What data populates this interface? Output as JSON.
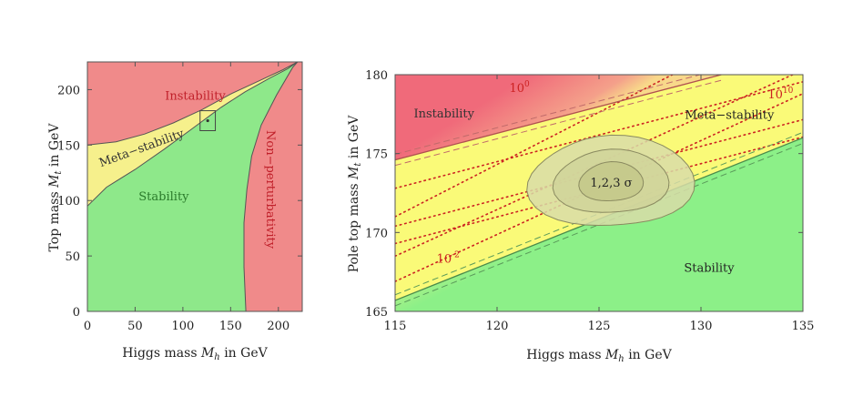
{
  "chart_data": [
    {
      "type": "area",
      "name": "higgs-top-phase-diagram-wide",
      "xlabel_parts": [
        "Higgs mass ",
        "M",
        "h",
        " in GeV"
      ],
      "ylabel_parts": [
        "Top mass ",
        "M",
        "t",
        " in GeV"
      ],
      "xlim": [
        0,
        225
      ],
      "ylim": [
        0,
        225
      ],
      "xticks": [
        "0",
        "50",
        "100",
        "150",
        "200"
      ],
      "yticks": [
        "0",
        "50",
        "100",
        "150",
        "200"
      ],
      "xtick_values": [
        0,
        50,
        100,
        150,
        200
      ],
      "ytick_values": [
        0,
        50,
        100,
        150,
        200
      ],
      "colors": {
        "instability": "#f08a8a",
        "metastability": "#f6f08c",
        "stability": "#8ee88a",
        "nonpert": "#f08a8a",
        "edge": "#555555"
      },
      "regions": [
        {
          "key": "instability",
          "label": "Instability",
          "label_at": [
            113,
            191
          ],
          "label_color": "#c0202a"
        },
        {
          "key": "metastability",
          "label": "Meta−stability",
          "label_at": [
            58,
            144
          ],
          "rotate_deg": -20,
          "label_color": "#333333"
        },
        {
          "key": "stability",
          "label": "Stability",
          "label_at": [
            80,
            100
          ],
          "label_color": "#2a7a2a"
        },
        {
          "key": "nonpert",
          "label": "Non−perturbativity",
          "label_at": [
            188,
            110
          ],
          "rotate_deg": 90,
          "label_color": "#c0202a"
        }
      ],
      "boundaries": {
        "upper": [
          [
            0,
            150
          ],
          [
            30,
            153
          ],
          [
            60,
            160
          ],
          [
            90,
            170
          ],
          [
            120,
            182
          ],
          [
            150,
            196
          ],
          [
            180,
            208
          ],
          [
            205,
            218
          ],
          [
            220,
            225
          ]
        ],
        "lower": [
          [
            0,
            95
          ],
          [
            20,
            112
          ],
          [
            50,
            128
          ],
          [
            80,
            146
          ],
          [
            110,
            165
          ],
          [
            140,
            184
          ],
          [
            165,
            198
          ],
          [
            190,
            210
          ],
          [
            210,
            219
          ],
          [
            220,
            225
          ]
        ],
        "nonpert": [
          [
            166,
            0
          ],
          [
            164,
            40
          ],
          [
            164,
            80
          ],
          [
            167,
            110
          ],
          [
            172,
            140
          ],
          [
            182,
            168
          ],
          [
            198,
            195
          ],
          [
            215,
            220
          ],
          [
            220,
            225
          ]
        ]
      },
      "zoom_box": {
        "x": [
          118,
          134
        ],
        "y": [
          163,
          181
        ]
      }
    },
    {
      "type": "area",
      "name": "higgs-top-phase-diagram-zoom",
      "xlabel_parts": [
        "Higgs mass ",
        "M",
        "h",
        " in GeV"
      ],
      "ylabel_parts": [
        "Pole top mass ",
        "M",
        "t",
        " in GeV"
      ],
      "xlim": [
        115,
        135
      ],
      "ylim": [
        165,
        180
      ],
      "xticks": [
        "115",
        "120",
        "125",
        "130",
        "135"
      ],
      "yticks": [
        "165",
        "170",
        "175",
        "180"
      ],
      "xtick_values": [
        115,
        120,
        125,
        130,
        135
      ],
      "ytick_values": [
        165,
        170,
        175,
        180
      ],
      "colors": {
        "instability": "#f06a7a",
        "metastability": "#fafa78",
        "stability": "#8cf088",
        "dotted": "#cc2222",
        "dash": "#999999",
        "ellipse_fill": "#d8dca8",
        "ellipse_edge": "#8a8a60"
      },
      "boundaries": {
        "instability_line": [
          [
            115,
            174.6
          ],
          [
            131,
            180
          ]
        ],
        "stability_line": [
          [
            115,
            165.7
          ],
          [
            135,
            176
          ]
        ]
      },
      "lifetime_lines": [
        {
          "label": "10^0",
          "base": "10",
          "exp": "0",
          "label_at": [
            121.1,
            178.9
          ],
          "line": [
            [
              115,
              171.0
            ],
            [
              128.6,
              180
            ]
          ]
        },
        {
          "label": "10^10",
          "base": "10",
          "exp": "10",
          "label_at": [
            133.9,
            178.5
          ],
          "line": [
            [
              115,
              168.5
            ],
            [
              134.5,
              180
            ]
          ]
        },
        {
          "label": "10^-2",
          "base": "10",
          "exp": "-2",
          "label_at": [
            117.6,
            168.1
          ],
          "line": [
            [
              115,
              166.9
            ],
            [
              135,
              178.8
            ]
          ]
        }
      ],
      "extra_dotted_offsets": [
        172.8,
        170.4,
        169.3
      ],
      "regions": [
        {
          "key": "instability",
          "label": "Instability",
          "label_at": [
            117.4,
            177.3
          ],
          "label_color": "#333333"
        },
        {
          "key": "metastability",
          "label": "Meta−stability",
          "label_at": [
            131.4,
            177.2
          ],
          "label_color": "#222222"
        },
        {
          "key": "stability",
          "label": "Stability",
          "label_at": [
            130.4,
            167.5
          ],
          "label_color": "#222222"
        }
      ],
      "ellipse_label": "1,2,3 σ",
      "ellipse_center": [
        125.6,
        173.2
      ],
      "ellipse_radii": [
        [
          1.5,
          1.3
        ],
        [
          2.7,
          2.1
        ],
        [
          3.9,
          3.0
        ]
      ]
    }
  ]
}
